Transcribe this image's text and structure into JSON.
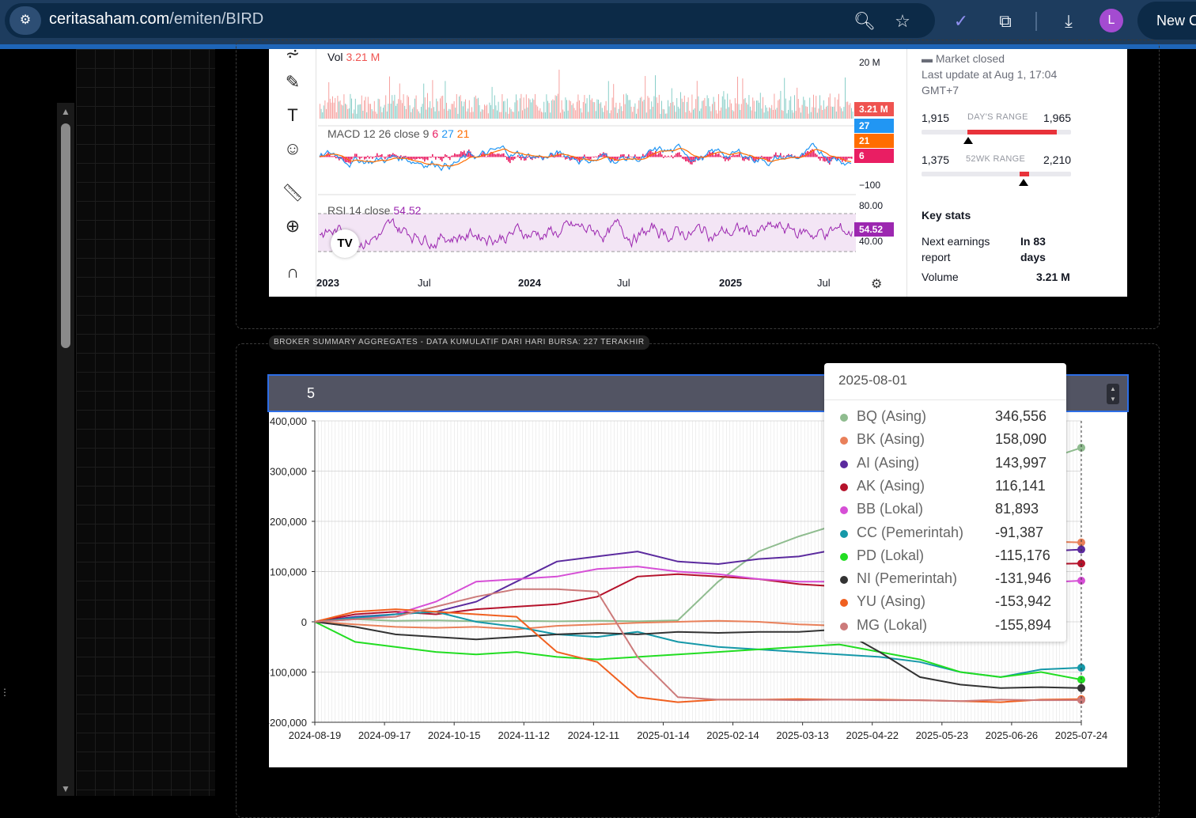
{
  "browser": {
    "url_domain": "ceritasaham.com",
    "url_path": "/emiten/BIRD",
    "avatar_letter": "L",
    "new_chat_label": "New C"
  },
  "tradingview": {
    "vol_label": "Vol",
    "vol_value": "3.21 M",
    "vol_axis": "20 M",
    "vol_badge": "3.21 M",
    "macd_label": "MACD 12 26 close 9",
    "macd_values": [
      "6",
      "27",
      "21"
    ],
    "macd_badges": [
      "27",
      "21",
      "6"
    ],
    "macd_axis": "−100",
    "rsi_label": "RSI 14 close",
    "rsi_value": "54.52",
    "rsi_axis_top": "80.00",
    "rsi_axis_bottom": "40.00",
    "rsi_badge": "54.52",
    "time_ticks": [
      "2023",
      "Jul",
      "2024",
      "Jul",
      "2025",
      "Jul"
    ],
    "logo": "TV",
    "colors": {
      "vol_badge": "#ef5350",
      "macd_blue": "#2196f3",
      "macd_orange": "#ff6d00",
      "macd_hist": "#e91e63",
      "rsi": "#9c27b0"
    }
  },
  "stock_info": {
    "market_status": "Market closed",
    "last_update": "Last update at Aug 1, 17:04",
    "timezone": "GMT+7",
    "days_range_low": "1,915",
    "days_range_label": "DAY'S RANGE",
    "days_range_high": "1,965",
    "wk52_low": "1,375",
    "wk52_label": "52WK RANGE",
    "wk52_high": "2,210",
    "key_stats_title": "Key stats",
    "next_earnings_label": "Next earnings report",
    "next_earnings_value": "In 83 days",
    "volume_label": "Volume",
    "volume_value": "3.21 M"
  },
  "broker_summary": {
    "title": "BROKER SUMMARY AGGREGATES - DATA KUMULATIF DARI HARI BURSA: 227 TERAKHIR",
    "input_value": "5"
  },
  "tooltip": {
    "date": "2025-08-01",
    "rows": [
      {
        "name": "BQ (Asing)",
        "value": "346,556",
        "color": "#8fbc8f"
      },
      {
        "name": "BK (Asing)",
        "value": "158,090",
        "color": "#e9805a"
      },
      {
        "name": "AI (Asing)",
        "value": "143,997",
        "color": "#5b2a9e"
      },
      {
        "name": "AK (Asing)",
        "value": "116,141",
        "color": "#b5122b"
      },
      {
        "name": "BB (Lokal)",
        "value": "81,893",
        "color": "#d64fd6"
      },
      {
        "name": "CC (Pemerintah)",
        "value": "-91,387",
        "color": "#1598a8"
      },
      {
        "name": "PD (Lokal)",
        "value": "-115,176",
        "color": "#22dd22"
      },
      {
        "name": "NI (Pemerintah)",
        "value": "-131,946",
        "color": "#333333"
      },
      {
        "name": "YU (Asing)",
        "value": "-153,942",
        "color": "#f06020"
      },
      {
        "name": "MG (Lokal)",
        "value": "-155,894",
        "color": "#cc7a7a"
      }
    ]
  },
  "chart_data": {
    "type": "line",
    "ylim": [
      -200000,
      400000
    ],
    "y_ticks": [
      "400,000",
      "300,000",
      "200,000",
      "100,000",
      "0",
      "-100,000",
      "-200,000"
    ],
    "x_ticks": [
      "2024-08-19",
      "2024-09-17",
      "2024-10-15",
      "2024-11-12",
      "2024-12-11",
      "2025-01-14",
      "2025-02-14",
      "2025-03-13",
      "2025-04-22",
      "2025-05-23",
      "2025-06-26",
      "2025-07-24"
    ],
    "series": [
      {
        "name": "BQ (Asing)",
        "color": "#8fbc8f",
        "values": [
          0,
          5000,
          2000,
          3000,
          1000,
          2000,
          1000,
          2000,
          1000,
          3000,
          80000,
          140000,
          170000,
          195000,
          200000,
          230000,
          280000,
          300000,
          320000,
          346556
        ]
      },
      {
        "name": "BK (Asing)",
        "color": "#e9805a",
        "values": [
          0,
          -5000,
          -10000,
          -12000,
          -10000,
          -15000,
          -8000,
          -5000,
          -2000,
          0,
          2000,
          0,
          -5000,
          -8000,
          -10000,
          100000,
          130000,
          145000,
          160000,
          158090
        ]
      },
      {
        "name": "AI (Asing)",
        "color": "#5b2a9e",
        "values": [
          0,
          10000,
          15000,
          20000,
          40000,
          80000,
          120000,
          130000,
          140000,
          120000,
          115000,
          125000,
          130000,
          145000,
          150000,
          145000,
          140000,
          145000,
          140000,
          143997
        ]
      },
      {
        "name": "AK (Asing)",
        "color": "#b5122b",
        "values": [
          0,
          15000,
          20000,
          15000,
          25000,
          30000,
          35000,
          50000,
          90000,
          95000,
          90000,
          85000,
          75000,
          70000,
          75000,
          100000,
          105000,
          110000,
          115000,
          116141
        ]
      },
      {
        "name": "BB (Lokal)",
        "color": "#d64fd6",
        "values": [
          0,
          5000,
          15000,
          40000,
          80000,
          85000,
          90000,
          105000,
          110000,
          100000,
          95000,
          85000,
          80000,
          80000,
          78000,
          75000,
          73000,
          75000,
          78000,
          81893
        ]
      },
      {
        "name": "CC (Pemerintah)",
        "color": "#1598a8",
        "values": [
          0,
          8000,
          15000,
          20000,
          0,
          -10000,
          -25000,
          -30000,
          -20000,
          -40000,
          -50000,
          -55000,
          -60000,
          -65000,
          -70000,
          -80000,
          -100000,
          -110000,
          -95000,
          -91387
        ]
      },
      {
        "name": "PD (Lokal)",
        "color": "#22dd22",
        "values": [
          0,
          -40000,
          -50000,
          -60000,
          -65000,
          -60000,
          -70000,
          -75000,
          -70000,
          -65000,
          -60000,
          -55000,
          -50000,
          -45000,
          -60000,
          -75000,
          -100000,
          -110000,
          -100000,
          -115176
        ]
      },
      {
        "name": "NI (Pemerintah)",
        "color": "#333333",
        "values": [
          0,
          -10000,
          -25000,
          -30000,
          -35000,
          -30000,
          -25000,
          -22000,
          -25000,
          -20000,
          -22000,
          -20000,
          -20000,
          -15000,
          -60000,
          -110000,
          -125000,
          -132000,
          -130000,
          -131946
        ]
      },
      {
        "name": "YU (Asing)",
        "color": "#f06020",
        "values": [
          0,
          20000,
          25000,
          20000,
          15000,
          10000,
          -60000,
          -80000,
          -150000,
          -160000,
          -155000,
          -155000,
          -154000,
          -155000,
          -155000,
          -156000,
          -158000,
          -160000,
          -155000,
          -153942
        ]
      },
      {
        "name": "MG (Lokal)",
        "color": "#cc7a7a",
        "values": [
          0,
          5000,
          10000,
          30000,
          50000,
          65000,
          65000,
          60000,
          -70000,
          -150000,
          -155000,
          -155000,
          -156000,
          -155000,
          -156000,
          -156000,
          -158000,
          -155000,
          -156000,
          -155894
        ]
      }
    ]
  }
}
